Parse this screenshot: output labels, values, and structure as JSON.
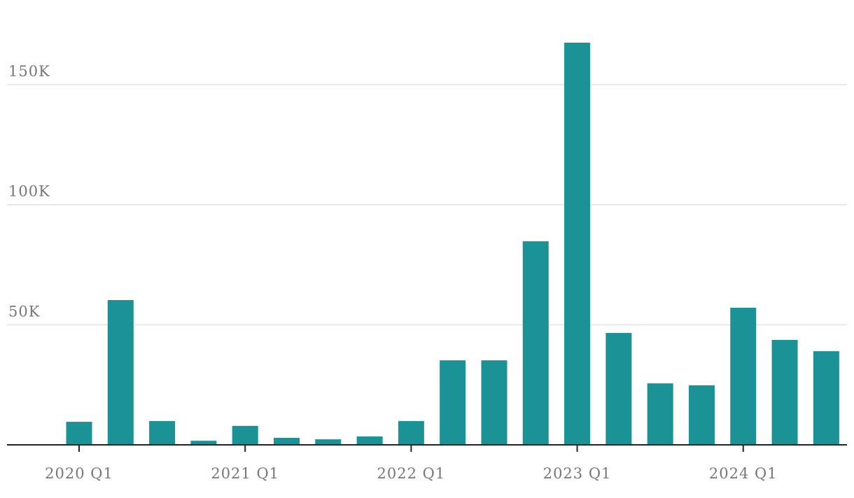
{
  "chart_data": {
    "type": "bar",
    "categories": [
      "2020 Q1",
      null,
      null,
      null,
      "2021 Q1",
      null,
      null,
      null,
      "2022 Q1",
      null,
      null,
      null,
      "2023 Q1",
      null,
      null,
      null,
      "2024 Q1",
      null,
      null
    ],
    "values": [
      9600,
      60300,
      9900,
      1700,
      7900,
      2900,
      2300,
      3500,
      9900,
      35200,
      35200,
      84800,
      167500,
      46600,
      25600,
      24800,
      57100,
      43700,
      39000
    ],
    "color": "#1a9296",
    "ylim": [
      0,
      170000
    ],
    "yticks": [
      {
        "value": 50000,
        "label": "50K"
      },
      {
        "value": 100000,
        "label": "100K"
      },
      {
        "value": 150000,
        "label": "150K"
      }
    ],
    "grid": true
  }
}
